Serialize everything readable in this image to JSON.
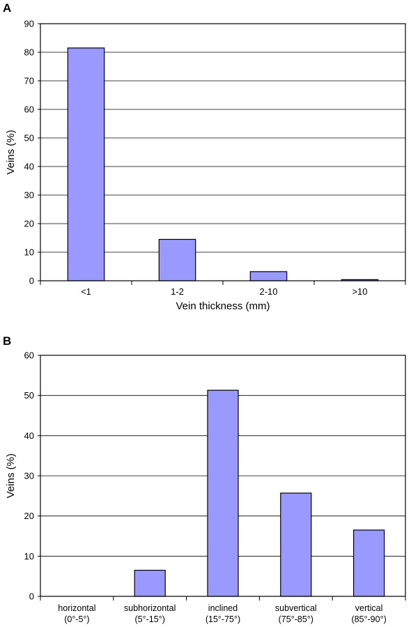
{
  "chart_data": [
    {
      "type": "bar",
      "panel": "A",
      "categories": [
        "<1",
        "1-2",
        "2-10",
        ">10"
      ],
      "values": [
        81.5,
        14.5,
        3.2,
        0.4
      ],
      "xlabel": "Vein thickness (mm)",
      "ylabel": "Veins (%)",
      "ylim": [
        0,
        90
      ],
      "yticks": [
        0,
        10,
        20,
        30,
        40,
        50,
        60,
        70,
        80,
        90
      ],
      "grid": true,
      "bar_color": "#9999ff"
    },
    {
      "type": "bar",
      "panel": "B",
      "categories": [
        [
          "horizontal",
          "(0°-5°)"
        ],
        [
          "subhorizontal",
          "(5°-15°)"
        ],
        [
          "inclined",
          "(15°-75°)"
        ],
        [
          "subvertical",
          "(75°-85°)"
        ],
        [
          "vertical",
          "(85°-90°)"
        ]
      ],
      "values": [
        0,
        6.5,
        51.3,
        25.7,
        16.5
      ],
      "xlabel": "",
      "ylabel": "Veins (%)",
      "ylim": [
        0,
        60
      ],
      "yticks": [
        0,
        10,
        20,
        30,
        40,
        50,
        60
      ],
      "grid": true,
      "bar_color": "#9999ff"
    }
  ]
}
